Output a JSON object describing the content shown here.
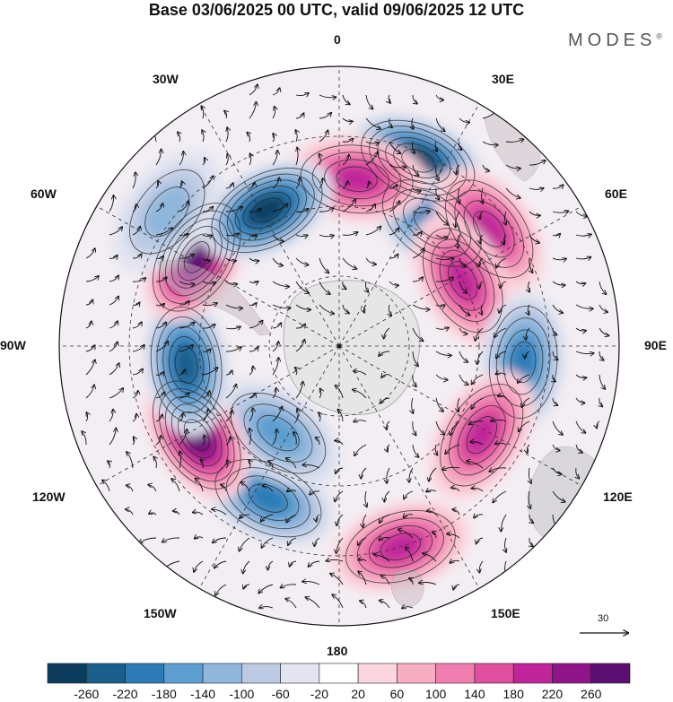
{
  "title": "Base 03/06/2025 00 UTC, valid 09/06/2025 12 UTC",
  "brand": "MODES",
  "brand_mark": "®",
  "lon_labels": {
    "deg0": "0",
    "deg30e": "30E",
    "deg60e": "60E",
    "deg90e": "90E",
    "deg120e": "120E",
    "deg150e": "150E",
    "deg180": "180",
    "deg150w": "150W",
    "deg120w": "120W",
    "deg90w": "90W",
    "deg60w": "60W",
    "deg30w": "30W"
  },
  "reference_vector": "30",
  "colorbar": {
    "labels": [
      "-260",
      "-220",
      "-180",
      "-140",
      "-100",
      "-60",
      "-20",
      "20",
      "60",
      "100",
      "140",
      "180",
      "220",
      "260"
    ],
    "colors": [
      "#0c3d5f",
      "#1a5e8c",
      "#2c7bb6",
      "#5b9ecf",
      "#8fb6db",
      "#bccbe3",
      "#e2e4f0",
      "#ffffff",
      "#fbd6de",
      "#f7adc3",
      "#f07fb0",
      "#e0509e",
      "#c0259a",
      "#8e1488",
      "#5c0f72"
    ]
  },
  "map": {
    "projection": "south-polar-stereographic",
    "field": "geopotential height anomaly with wind vectors",
    "anomaly_centers": [
      {
        "lon_deg": 23,
        "sign": "negative",
        "level": 260
      },
      {
        "lon_deg": 37,
        "sign": "negative",
        "level": 180
      },
      {
        "lon_deg": 6,
        "sign": "positive",
        "level": 160
      },
      {
        "lon_deg": 52,
        "sign": "positive",
        "level": 180
      },
      {
        "lon_deg": 62,
        "sign": "positive",
        "level": 160
      },
      {
        "lon_deg": 95,
        "sign": "negative",
        "level": 180
      },
      {
        "lon_deg": 122,
        "sign": "positive",
        "level": 160
      },
      {
        "lon_deg": 163,
        "sign": "positive",
        "level": 180
      },
      {
        "lon_deg": -155,
        "sign": "negative",
        "level": 180
      },
      {
        "lon_deg": -145,
        "sign": "negative",
        "level": 140
      },
      {
        "lon_deg": -122,
        "sign": "positive",
        "level": 240
      },
      {
        "lon_deg": -97,
        "sign": "negative",
        "level": 220
      },
      {
        "lon_deg": -58,
        "sign": "positive",
        "level": 240
      },
      {
        "lon_deg": -28,
        "sign": "negative",
        "level": 260
      },
      {
        "lon_deg": -52,
        "sign": "negative",
        "level": 100
      }
    ]
  }
}
